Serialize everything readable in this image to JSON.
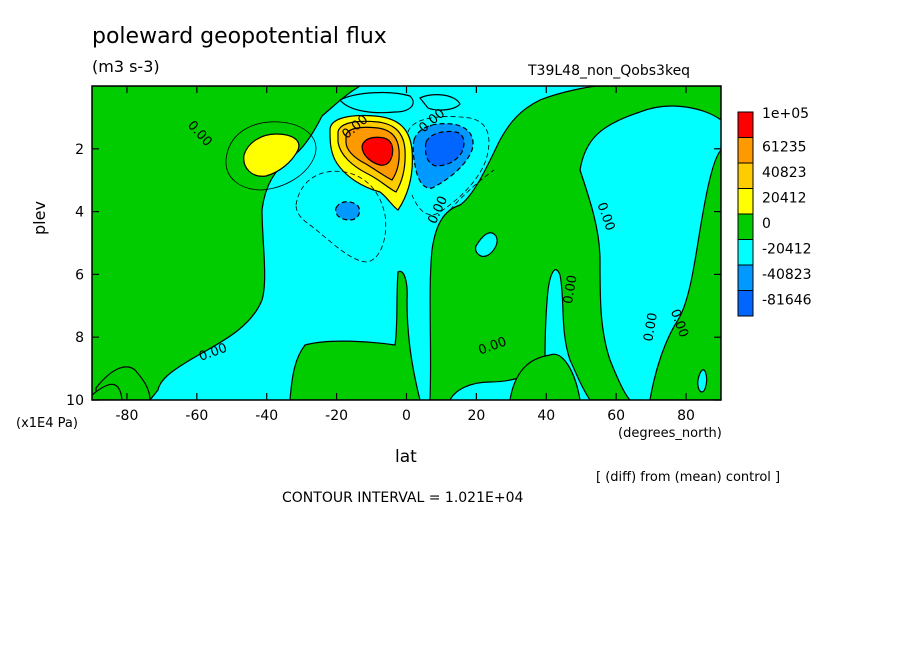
{
  "chart_data": {
    "type": "heatmap",
    "title": "poleward geopotential flux",
    "units": "(m3 s-3)",
    "experiment": "T39L48_non_Qobs3keq",
    "xlabel": "lat",
    "xunit": "(degrees_north)",
    "ylabel": "plev",
    "yunit": "(x1E4 Pa)",
    "note": "[ (diff) from (mean) control ]",
    "contour_interval": "CONTOUR INTERVAL = 1.021E+04",
    "xlim": [
      -90,
      90
    ],
    "ylim": [
      10,
      0
    ],
    "x_ticks": [
      -80,
      -60,
      -40,
      -20,
      0,
      20,
      40,
      60,
      80
    ],
    "y_ticks": [
      2,
      4,
      6,
      8,
      10
    ],
    "contour_labels": [
      "0.00",
      "0.00",
      "0.00",
      "0.00",
      "0.00",
      "0.00",
      "0.00",
      "0.00",
      "0.00",
      "0.00"
    ],
    "legend": [
      {
        "label": "1e+05",
        "color": "#ff0000"
      },
      {
        "label": "61235",
        "color": "#ff9900"
      },
      {
        "label": "40823",
        "color": "#ffcc00"
      },
      {
        "label": "20412",
        "color": "#ffff00"
      },
      {
        "label": "0",
        "color": "#00cc00"
      },
      {
        "label": "-20412",
        "color": "#00ffff"
      },
      {
        "label": "-40823",
        "color": "#0099ff"
      },
      {
        "label": "-81646",
        "color": "#0066ff"
      }
    ],
    "colors": {
      "positive_small": "#00cc00",
      "negative_small": "#00ffff"
    }
  }
}
